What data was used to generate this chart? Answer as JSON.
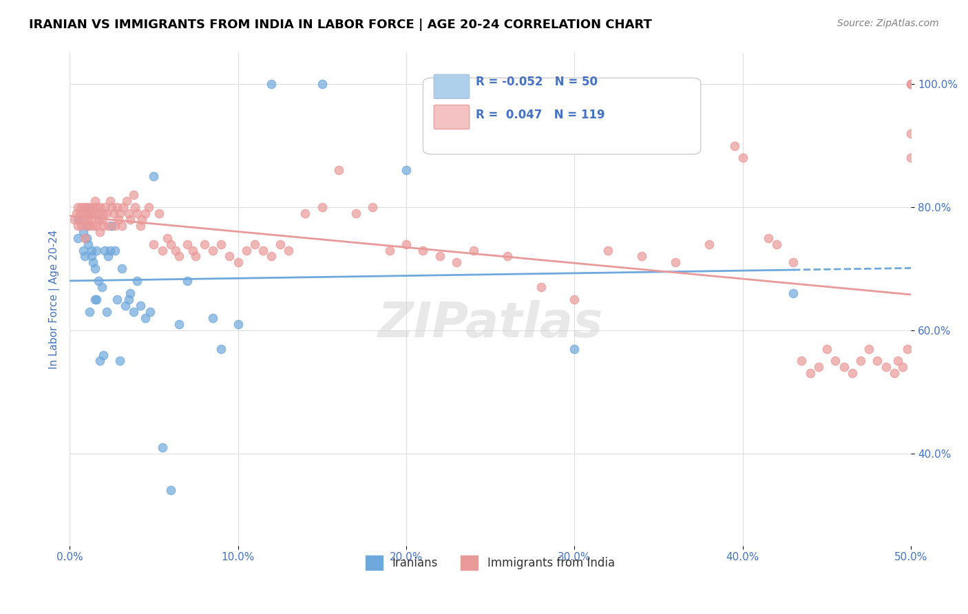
{
  "title": "IRANIAN VS IMMIGRANTS FROM INDIA IN LABOR FORCE | AGE 20-24 CORRELATION CHART",
  "source": "Source: ZipAtlas.com",
  "xlabel_bottom": "",
  "ylabel": "In Labor Force | Age 20-24",
  "x_min": 0.0,
  "x_max": 0.5,
  "y_min": 0.0,
  "y_max": 1.05,
  "x_ticks": [
    0.0,
    0.1,
    0.2,
    0.3,
    0.4,
    0.5
  ],
  "x_tick_labels": [
    "0.0%",
    "10.0%",
    "20.0%",
    "30.0%",
    "40.0%",
    "50.0%"
  ],
  "y_ticks": [
    0.4,
    0.6,
    0.8,
    1.0
  ],
  "y_tick_labels": [
    "40.0%",
    "60.0%",
    "80.0%",
    "100.0%"
  ],
  "iranians_color": "#6fa8dc",
  "india_color": "#ea9999",
  "iranians_edge": "#6fa8dc",
  "india_edge": "#ea9999",
  "legend_iranians_label": "Iranians",
  "legend_india_label": "Immigrants from India",
  "legend_r_iranians": "R = -0.052",
  "legend_n_iranians": "N = 50",
  "legend_r_india": "R =  0.047",
  "legend_n_india": "N = 119",
  "trendline_iranians_color": "#6fa8dc",
  "trendline_india_color": "#ea9999",
  "watermark": "ZIPatlas",
  "iranians_x": [
    0.005,
    0.005,
    0.008,
    0.008,
    0.009,
    0.01,
    0.01,
    0.011,
    0.012,
    0.013,
    0.013,
    0.014,
    0.015,
    0.015,
    0.016,
    0.016,
    0.017,
    0.018,
    0.019,
    0.02,
    0.021,
    0.022,
    0.023,
    0.024,
    0.025,
    0.027,
    0.028,
    0.03,
    0.031,
    0.033,
    0.035,
    0.036,
    0.038,
    0.04,
    0.042,
    0.045,
    0.048,
    0.05,
    0.055,
    0.06,
    0.065,
    0.07,
    0.085,
    0.09,
    0.1,
    0.12,
    0.15,
    0.2,
    0.3,
    0.43
  ],
  "iranians_y": [
    0.75,
    0.78,
    0.76,
    0.73,
    0.72,
    0.77,
    0.75,
    0.74,
    0.63,
    0.72,
    0.73,
    0.71,
    0.65,
    0.7,
    0.73,
    0.65,
    0.68,
    0.55,
    0.67,
    0.56,
    0.73,
    0.63,
    0.72,
    0.73,
    0.77,
    0.73,
    0.65,
    0.55,
    0.7,
    0.64,
    0.65,
    0.66,
    0.63,
    0.68,
    0.64,
    0.62,
    0.63,
    0.85,
    0.41,
    0.34,
    0.61,
    0.68,
    0.62,
    0.57,
    0.61,
    1.0,
    1.0,
    0.86,
    0.57,
    0.66
  ],
  "india_x": [
    0.003,
    0.004,
    0.005,
    0.005,
    0.006,
    0.006,
    0.007,
    0.007,
    0.008,
    0.008,
    0.009,
    0.009,
    0.01,
    0.01,
    0.01,
    0.011,
    0.011,
    0.012,
    0.012,
    0.013,
    0.013,
    0.014,
    0.014,
    0.015,
    0.015,
    0.016,
    0.016,
    0.017,
    0.017,
    0.018,
    0.018,
    0.019,
    0.02,
    0.02,
    0.021,
    0.022,
    0.023,
    0.024,
    0.025,
    0.026,
    0.027,
    0.028,
    0.029,
    0.03,
    0.031,
    0.032,
    0.034,
    0.035,
    0.036,
    0.038,
    0.039,
    0.04,
    0.042,
    0.043,
    0.045,
    0.047,
    0.05,
    0.053,
    0.055,
    0.058,
    0.06,
    0.063,
    0.065,
    0.07,
    0.073,
    0.075,
    0.08,
    0.085,
    0.09,
    0.095,
    0.1,
    0.105,
    0.11,
    0.115,
    0.12,
    0.125,
    0.13,
    0.14,
    0.15,
    0.16,
    0.17,
    0.18,
    0.19,
    0.2,
    0.21,
    0.22,
    0.23,
    0.24,
    0.26,
    0.28,
    0.3,
    0.32,
    0.34,
    0.36,
    0.38,
    0.395,
    0.4,
    0.415,
    0.42,
    0.43,
    0.435,
    0.44,
    0.445,
    0.45,
    0.455,
    0.46,
    0.465,
    0.47,
    0.475,
    0.48,
    0.485,
    0.49,
    0.492,
    0.495,
    0.498,
    0.5,
    0.5,
    0.5,
    0.5
  ],
  "india_y": [
    0.78,
    0.79,
    0.8,
    0.77,
    0.79,
    0.78,
    0.8,
    0.77,
    0.79,
    0.78,
    0.8,
    0.75,
    0.79,
    0.77,
    0.8,
    0.79,
    0.78,
    0.8,
    0.77,
    0.79,
    0.78,
    0.8,
    0.77,
    0.81,
    0.79,
    0.8,
    0.77,
    0.79,
    0.78,
    0.8,
    0.76,
    0.78,
    0.79,
    0.77,
    0.8,
    0.79,
    0.77,
    0.81,
    0.8,
    0.79,
    0.77,
    0.8,
    0.78,
    0.79,
    0.77,
    0.8,
    0.81,
    0.79,
    0.78,
    0.82,
    0.8,
    0.79,
    0.77,
    0.78,
    0.79,
    0.8,
    0.74,
    0.79,
    0.73,
    0.75,
    0.74,
    0.73,
    0.72,
    0.74,
    0.73,
    0.72,
    0.74,
    0.73,
    0.74,
    0.72,
    0.71,
    0.73,
    0.74,
    0.73,
    0.72,
    0.74,
    0.73,
    0.79,
    0.8,
    0.86,
    0.79,
    0.8,
    0.73,
    0.74,
    0.73,
    0.72,
    0.71,
    0.73,
    0.72,
    0.67,
    0.65,
    0.73,
    0.72,
    0.71,
    0.74,
    0.9,
    0.88,
    0.75,
    0.74,
    0.71,
    0.55,
    0.53,
    0.54,
    0.57,
    0.55,
    0.54,
    0.53,
    0.55,
    0.57,
    0.55,
    0.54,
    0.53,
    0.55,
    0.54,
    0.57,
    1.0,
    1.0,
    0.88,
    0.92
  ]
}
